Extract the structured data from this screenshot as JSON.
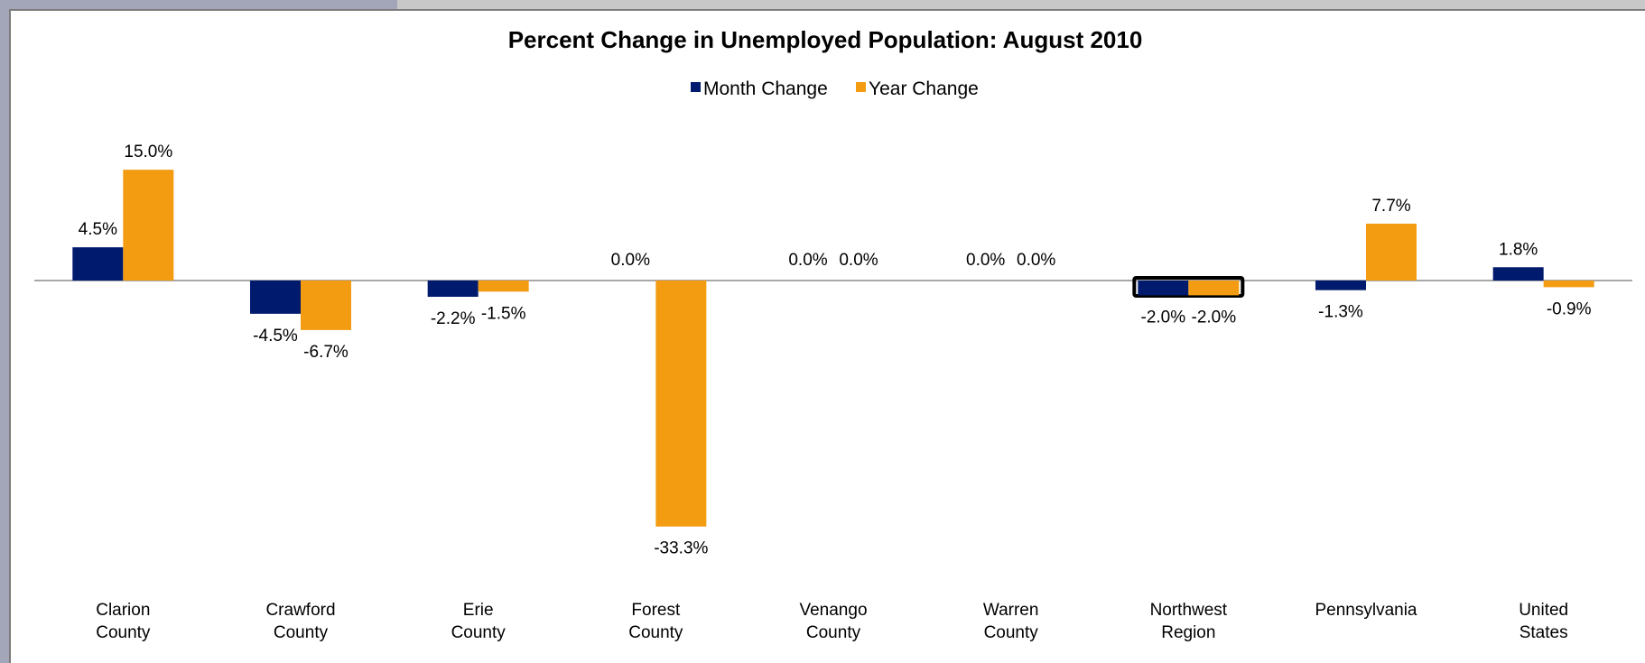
{
  "chart_data": {
    "type": "bar",
    "title": "Percent Change in Unemployed Population: August 2010",
    "xlabel": "",
    "ylabel": "",
    "ylim": [
      -40,
      20
    ],
    "grid": false,
    "legend": "top-center",
    "categories": [
      [
        "Clarion",
        "County"
      ],
      [
        "Crawford",
        "County"
      ],
      [
        "Erie",
        "County"
      ],
      [
        "Forest",
        "County"
      ],
      [
        "Venango",
        "County"
      ],
      [
        "Warren",
        "County"
      ],
      [
        "Northwest",
        "Region"
      ],
      [
        "Pennsylvania"
      ],
      [
        "United",
        "States"
      ]
    ],
    "series": [
      {
        "name": "Month Change",
        "color": "#001a6e",
        "values": [
          4.5,
          -4.5,
          -2.2,
          0.0,
          0.0,
          0.0,
          -2.0,
          -1.3,
          1.8
        ],
        "labels": [
          "4.5%",
          "-4.5%",
          "-2.2%",
          "0.0%",
          "0.0%",
          "0.0%",
          "-2.0%",
          "-1.3%",
          "1.8%"
        ]
      },
      {
        "name": "Year Change",
        "color": "#f39c12",
        "values": [
          15.0,
          -6.7,
          -1.5,
          -33.3,
          0.0,
          0.0,
          -2.0,
          7.7,
          -0.9
        ],
        "labels": [
          "15.0%",
          "-6.7%",
          "-1.5%",
          "-33.3%",
          "0.0%",
          "0.0%",
          "-2.0%",
          "7.7%",
          "-0.9%"
        ]
      }
    ],
    "highlighted_category": "Northwest Region"
  }
}
